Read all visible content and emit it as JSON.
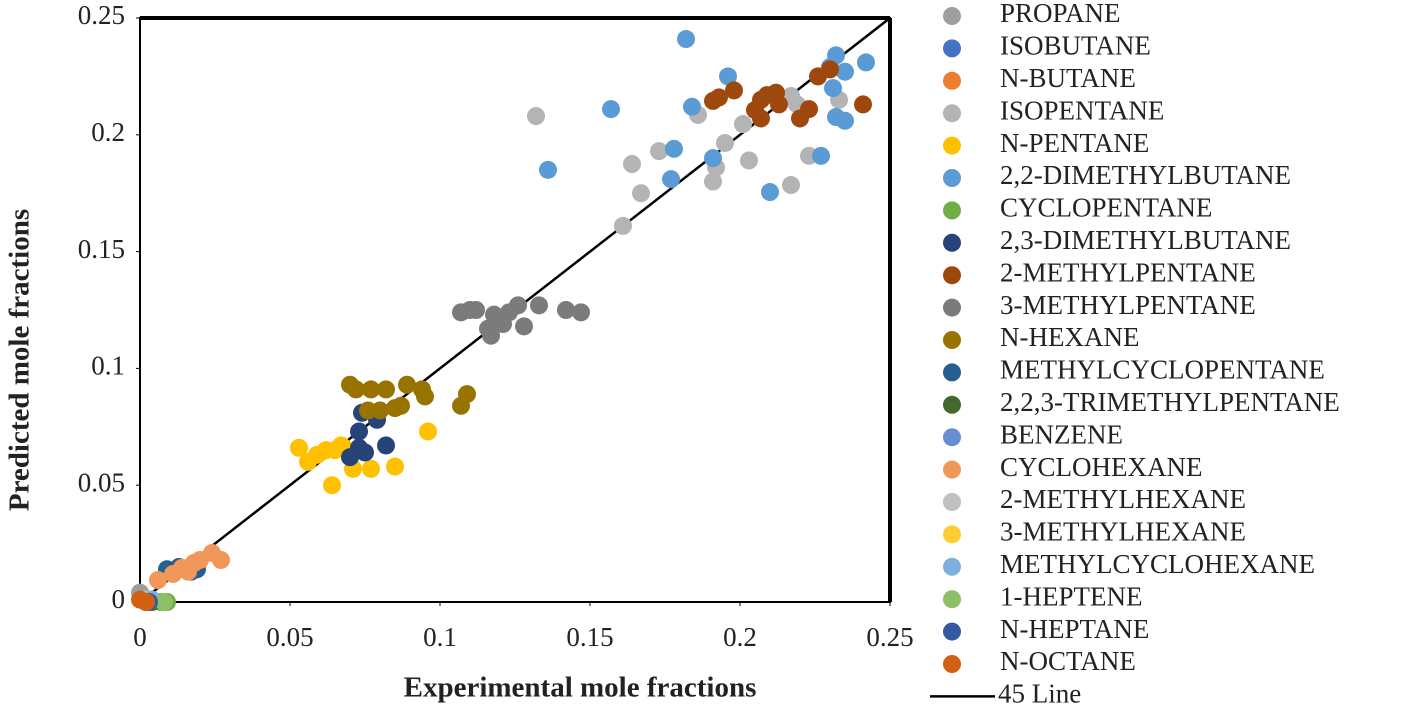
{
  "chart_data": {
    "type": "scatter",
    "x_label": "Experimental mole fractions",
    "y_label": "Predicted mole fractions",
    "xlim": [
      0,
      0.25
    ],
    "ylim": [
      0,
      0.25
    ],
    "xticks": [
      0,
      0.05,
      0.1,
      0.15,
      0.2,
      0.25
    ],
    "yticks": [
      0,
      0.05,
      0.1,
      0.15,
      0.2,
      0.25
    ],
    "grid": false,
    "legend": "right",
    "series": [
      {
        "name": "PROPANE",
        "color": "#9e9e9e",
        "x": [
          0.0,
          0.001
        ],
        "y": [
          0.004,
          0.002
        ]
      },
      {
        "name": "ISOBUTANE",
        "color": "#4472c4",
        "x": [
          0.002
        ],
        "y": [
          0.0
        ]
      },
      {
        "name": "N-BUTANE",
        "color": "#ed7d31",
        "x": [
          0.001
        ],
        "y": [
          0.001
        ]
      },
      {
        "name": "ISOPENTANE",
        "color": "#b4b4b4",
        "x": [
          0.132,
          0.164,
          0.167,
          0.161,
          0.173,
          0.186,
          0.191,
          0.192,
          0.195,
          0.203,
          0.201,
          0.217,
          0.223,
          0.233,
          0.217,
          0.219
        ],
        "y": [
          0.208,
          0.1875,
          0.175,
          0.161,
          0.193,
          0.2085,
          0.18,
          0.186,
          0.1965,
          0.189,
          0.2046,
          0.1785,
          0.191,
          0.215,
          0.2166,
          0.213
        ]
      },
      {
        "name": "N-PENTANE",
        "color": "#ffc000",
        "x": [
          0.053,
          0.056,
          0.059,
          0.062,
          0.065,
          0.067,
          0.064,
          0.071,
          0.077,
          0.085,
          0.096,
          0.068
        ],
        "y": [
          0.066,
          0.06,
          0.063,
          0.065,
          0.065,
          0.067,
          0.05,
          0.057,
          0.057,
          0.058,
          0.073,
          0.066
        ]
      },
      {
        "name": "2,2-DIMETHYLBUTANE",
        "color": "#5b9bd5",
        "x": [
          0.182,
          0.157,
          0.136,
          0.178,
          0.177,
          0.184,
          0.196,
          0.191,
          0.21,
          0.232,
          0.23,
          0.235,
          0.242,
          0.231,
          0.232,
          0.235,
          0.227
        ],
        "y": [
          0.241,
          0.211,
          0.185,
          0.194,
          0.181,
          0.212,
          0.225,
          0.19,
          0.1755,
          0.234,
          0.229,
          0.227,
          0.231,
          0.22,
          0.2076,
          0.206,
          0.191
        ]
      },
      {
        "name": "CYCLOPENTANE",
        "color": "#70ad47",
        "x": [
          0.007,
          0.009
        ],
        "y": [
          0.0,
          0.0
        ]
      },
      {
        "name": "2,3-DIMETHYLBUTANE",
        "color": "#264478",
        "x": [
          0.07,
          0.073,
          0.075,
          0.073,
          0.074,
          0.079,
          0.082
        ],
        "y": [
          0.062,
          0.066,
          0.064,
          0.073,
          0.081,
          0.078,
          0.067
        ]
      },
      {
        "name": "2-METHYLPENTANE",
        "color": "#9e480e",
        "x": [
          0.191,
          0.193,
          0.198,
          0.205,
          0.207,
          0.207,
          0.209,
          0.212,
          0.213,
          0.22,
          0.223,
          0.226,
          0.23,
          0.241
        ],
        "y": [
          0.2145,
          0.216,
          0.219,
          0.2106,
          0.207,
          0.215,
          0.217,
          0.218,
          0.213,
          0.207,
          0.211,
          0.225,
          0.228,
          0.213
        ]
      },
      {
        "name": "3-METHYLPENTANE",
        "color": "#7b7b7b",
        "x": [
          0.107,
          0.11,
          0.112,
          0.116,
          0.117,
          0.118,
          0.121,
          0.123,
          0.126,
          0.128,
          0.133,
          0.142,
          0.147
        ],
        "y": [
          0.124,
          0.125,
          0.125,
          0.117,
          0.114,
          0.123,
          0.119,
          0.124,
          0.127,
          0.118,
          0.127,
          0.125,
          0.124
        ]
      },
      {
        "name": "N-HEXANE",
        "color": "#997300",
        "x": [
          0.07,
          0.072,
          0.076,
          0.077,
          0.082,
          0.085,
          0.087,
          0.089,
          0.094,
          0.095,
          0.107,
          0.109,
          0.08
        ],
        "y": [
          0.093,
          0.091,
          0.082,
          0.091,
          0.091,
          0.083,
          0.084,
          0.093,
          0.091,
          0.088,
          0.084,
          0.089,
          0.082
        ]
      },
      {
        "name": "METHYLCYCLOPENTANE",
        "color": "#255e91",
        "x": [
          0.009,
          0.013,
          0.017,
          0.019
        ],
        "y": [
          0.014,
          0.015,
          0.013,
          0.014
        ]
      },
      {
        "name": "2,2,3-TRIMETHYLPENTANE",
        "color": "#43682b",
        "x": [
          0.004
        ],
        "y": [
          0.0
        ]
      },
      {
        "name": "BENZENE",
        "color": "#698ed0",
        "x": [
          0.003
        ],
        "y": [
          0.001
        ]
      },
      {
        "name": "CYCLOHEXANE",
        "color": "#f1975a",
        "x": [
          0.006,
          0.011,
          0.014,
          0.018,
          0.02,
          0.024,
          0.027,
          0.016
        ],
        "y": [
          0.0094,
          0.012,
          0.0146,
          0.0167,
          0.018,
          0.021,
          0.018,
          0.013
        ]
      },
      {
        "name": "2-METHYLHEXANE",
        "color": "#c0c0c0",
        "x": [
          0.002
        ],
        "y": [
          0.001
        ]
      },
      {
        "name": "3-METHYLHEXANE",
        "color": "#ffcd33",
        "x": [
          0.003
        ],
        "y": [
          0.0
        ]
      },
      {
        "name": "METHYLCYCLOHEXANE",
        "color": "#7cafdd",
        "x": [
          0.004
        ],
        "y": [
          0.001
        ]
      },
      {
        "name": "1-HEPTENE",
        "color": "#8cc168",
        "x": [
          0.008
        ],
        "y": [
          0.0
        ]
      },
      {
        "name": "N-HEPTANE",
        "color": "#335aa1",
        "x": [
          0.003
        ],
        "y": [
          0.0
        ]
      },
      {
        "name": "N-OCTANE",
        "color": "#d26012",
        "x": [
          0.0,
          0.002
        ],
        "y": [
          0.001,
          0.0
        ]
      }
    ],
    "line": {
      "name": "45 Line",
      "color": "#000000",
      "x": [
        0,
        0.25
      ],
      "y": [
        0,
        0.25
      ]
    }
  }
}
